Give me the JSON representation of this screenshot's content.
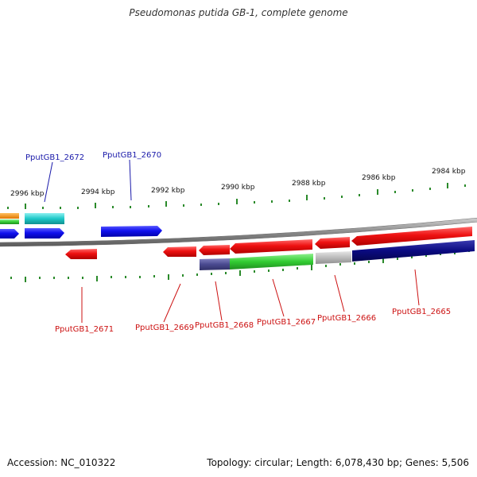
{
  "title": "Pseudomonas putida GB-1, complete genome",
  "footer": {
    "accession_label": "Accession:",
    "accession": "NC_010322",
    "topology_label": "Topology:",
    "topology": "circular;",
    "length_label": "Length:",
    "length": "6,078,430 bp;",
    "genes_label": "Genes:",
    "genes": "5,506"
  },
  "scale": {
    "ticks": [
      "2996 kbp",
      "2994 kbp",
      "2992 kbp",
      "2990 kbp",
      "2988 kbp",
      "2986 kbp",
      "2984 kbp"
    ]
  },
  "genes": {
    "top": [
      "PputGB1_2672",
      "PputGB1_2670"
    ],
    "bottom": [
      "PputGB1_2671",
      "PputGB1_2669",
      "PputGB1_2668",
      "PputGB1_2667",
      "PputGB1_2666",
      "PputGB1_2665"
    ]
  },
  "colors": {
    "forward_gene": "#1010ee",
    "reverse_gene": "#ee1111",
    "top_label": "#1a1aaa",
    "bottom_label": "#cc1111",
    "cog_cyan": "#1ec8c8",
    "cog_navy": "#0a0a80",
    "cog_green": "#33cc33",
    "cog_gray": "#bbbbbb",
    "cog_slate": "#4a4a90",
    "cog_orange": "#f08c10",
    "tick": "#2a8a2a",
    "backbone": "#808080"
  }
}
